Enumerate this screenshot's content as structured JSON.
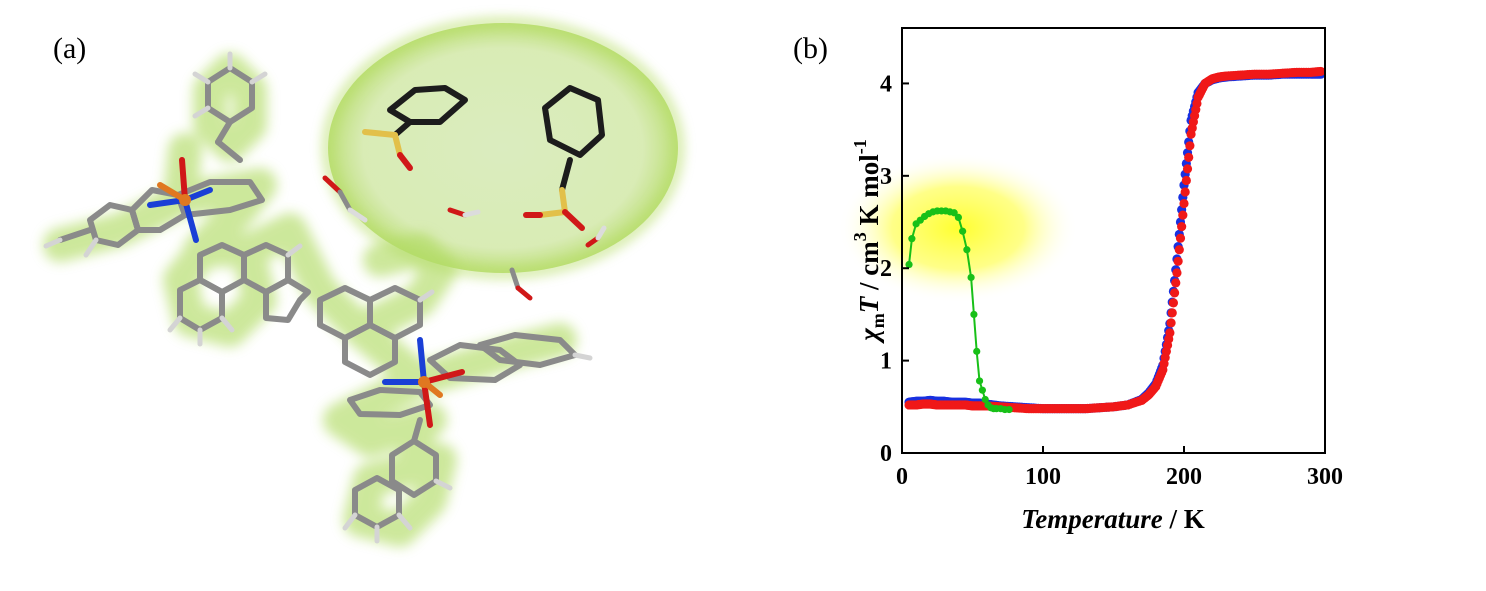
{
  "panels": {
    "a": {
      "label": "(a)"
    },
    "b": {
      "label": "(b)"
    }
  },
  "molecule": {
    "atom_colors": {
      "carbon": "#8a8a8a",
      "nitrogen": "#1a3fd6",
      "oxygen": "#d01818",
      "iron": "#e07820",
      "sulfur": "#e2c04a",
      "hydrogen": "#dcdcdc",
      "anion_carbon": "#1c1c1c"
    },
    "glow_color": "#a8d65a"
  },
  "chart_data": {
    "type": "scatter",
    "xlabel_italic": "Temperature",
    "xlabel_unit": "/ K",
    "ylabel": {
      "chi": "χ",
      "sub": "m",
      "T": "T",
      "rest1": " / cm",
      "sup3": "3",
      "rest2": " K mol",
      "supm1": "-1"
    },
    "xlim": [
      0,
      300
    ],
    "ylim": [
      0,
      4.6
    ],
    "xticks": [
      0,
      100,
      200,
      300
    ],
    "yticks": [
      0,
      1,
      2,
      3,
      4
    ],
    "highlight_color": "#ffff30",
    "series": [
      {
        "color": "#1830e0",
        "style": "markers",
        "x": [
          5,
          10,
          15,
          20,
          25,
          30,
          35,
          40,
          45,
          50,
          55,
          60,
          70,
          80,
          90,
          100,
          110,
          120,
          130,
          140,
          150,
          160,
          170,
          175,
          180,
          185,
          190,
          195,
          200,
          205,
          210,
          215,
          220,
          225,
          230,
          240,
          250,
          260,
          270,
          280,
          290,
          297
        ],
        "y": [
          0.55,
          0.56,
          0.56,
          0.57,
          0.56,
          0.56,
          0.55,
          0.55,
          0.55,
          0.54,
          0.54,
          0.53,
          0.51,
          0.5,
          0.49,
          0.48,
          0.48,
          0.48,
          0.48,
          0.49,
          0.5,
          0.52,
          0.58,
          0.65,
          0.75,
          0.95,
          1.4,
          2.1,
          2.9,
          3.6,
          3.9,
          4.0,
          4.04,
          4.06,
          4.07,
          4.08,
          4.09,
          4.09,
          4.1,
          4.1,
          4.1,
          4.1
        ]
      },
      {
        "color": "#f01818",
        "style": "markers",
        "x": [
          5,
          10,
          15,
          20,
          25,
          30,
          35,
          40,
          45,
          50,
          55,
          60,
          70,
          80,
          90,
          100,
          110,
          120,
          130,
          140,
          150,
          160,
          170,
          175,
          180,
          185,
          190,
          195,
          200,
          205,
          210,
          215,
          220,
          225,
          230,
          240,
          250,
          260,
          270,
          280,
          290,
          297
        ],
        "y": [
          0.52,
          0.52,
          0.53,
          0.53,
          0.52,
          0.52,
          0.52,
          0.52,
          0.52,
          0.51,
          0.51,
          0.51,
          0.5,
          0.49,
          0.48,
          0.48,
          0.48,
          0.48,
          0.48,
          0.49,
          0.5,
          0.52,
          0.57,
          0.63,
          0.72,
          0.9,
          1.3,
          1.95,
          2.7,
          3.45,
          3.85,
          4.0,
          4.05,
          4.07,
          4.08,
          4.09,
          4.1,
          4.1,
          4.11,
          4.12,
          4.12,
          4.13
        ]
      },
      {
        "color": "#18c018",
        "style": "line-markers",
        "x": [
          5,
          7,
          10,
          13,
          16,
          19,
          22,
          25,
          28,
          31,
          34,
          37,
          40,
          43,
          46,
          49,
          51,
          53,
          55,
          57,
          59,
          61,
          63,
          65,
          67,
          70,
          73,
          76
        ],
        "y": [
          2.04,
          2.32,
          2.48,
          2.52,
          2.56,
          2.59,
          2.61,
          2.62,
          2.62,
          2.62,
          2.61,
          2.6,
          2.55,
          2.4,
          2.2,
          1.9,
          1.5,
          1.1,
          0.78,
          0.68,
          0.58,
          0.52,
          0.49,
          0.48,
          0.48,
          0.48,
          0.47,
          0.47
        ]
      }
    ]
  }
}
